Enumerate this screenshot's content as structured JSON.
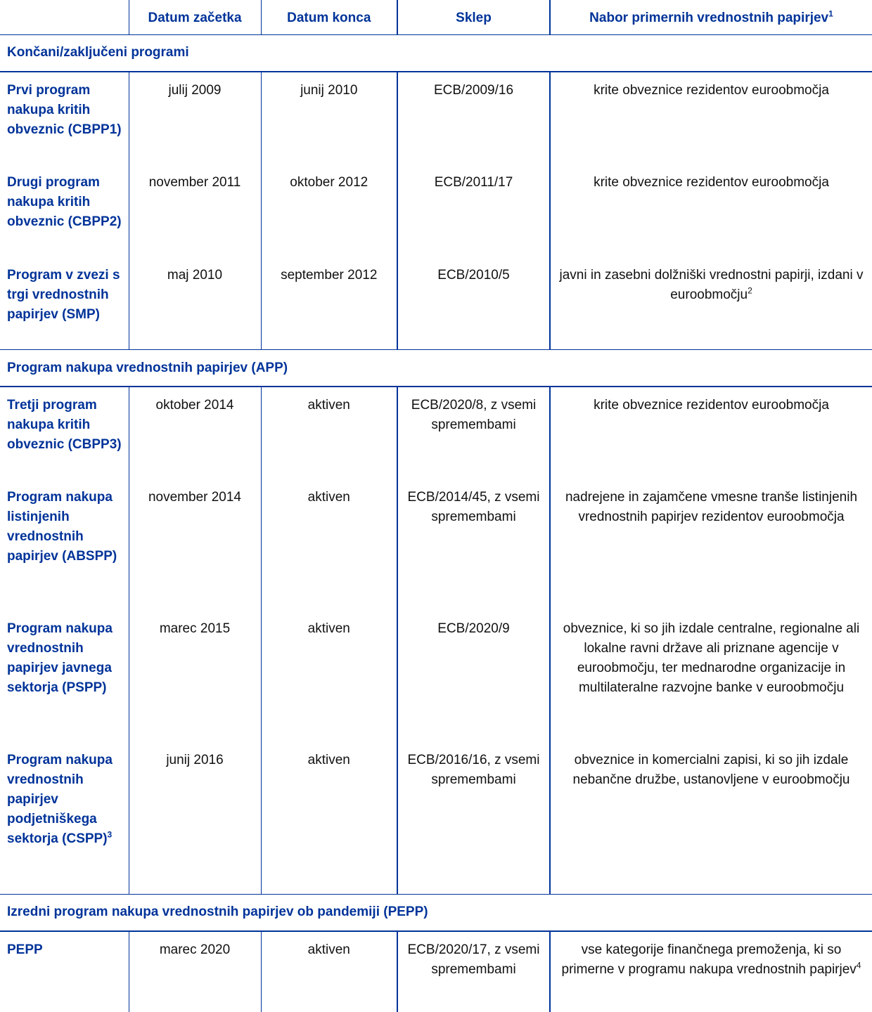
{
  "header": {
    "columns": [
      "",
      "Datum začetka",
      "Datum konca",
      "Sklep",
      "Nabor primernih vrednostnih papirjev"
    ],
    "last_col_footnote": "1"
  },
  "sections": [
    {
      "title": "Končani/zaključeni programi",
      "rows": [
        {
          "program": "Prvi program nakupa kritih obveznic (CBPP1)",
          "start": "julij 2009",
          "end": "junij 2010",
          "decision": "ECB/2009/16",
          "eligible": "krite obveznice rezidentov euroobmočja"
        },
        {
          "program": "Drugi program nakupa kritih obveznic (CBPP2)",
          "start": "november 2011",
          "end": "oktober 2012",
          "decision": "ECB/2011/17",
          "eligible": "krite obveznice rezidentov euroobmočja"
        },
        {
          "program": "Program v zvezi s trgi vrednostnih papirjev (SMP)",
          "start": "maj 2010",
          "end": "september 2012",
          "decision": "ECB/2010/5",
          "eligible": "javni in zasebni dolžniški vrednostni papirji, izdani v euroobmočju",
          "eligible_footnote": "2"
        }
      ]
    },
    {
      "title": "Program nakupa vrednostnih papirjev (APP)",
      "rows": [
        {
          "program": "Tretji program nakupa kritih obveznic (CBPP3)",
          "start": "oktober 2014",
          "end": "aktiven",
          "decision": "ECB/2020/8, z vsemi spremembami",
          "eligible": "krite obveznice rezidentov euroobmočja"
        },
        {
          "program": "Program nakupa listinjenih vrednostnih papirjev (ABSPP)",
          "start": "november 2014",
          "end": "aktiven",
          "decision": "ECB/2014/45, z vsemi spremembami",
          "eligible": "nadrejene in zajamčene vmesne tranše listinjenih vrednostnih papirjev rezidentov euroobmočja"
        },
        {
          "program": "Program nakupa vrednostnih papirjev javnega sektorja (PSPP)",
          "start": "marec 2015",
          "end": "aktiven",
          "decision": "ECB/2020/9",
          "eligible": "obveznice, ki so jih izdale centralne, regionalne ali lokalne ravni države ali priznane agencije v euroobmočju, ter mednarodne organizacije in multilateralne razvojne banke v euroobmočju"
        },
        {
          "program": "Program nakupa vrednostnih papirjev podjetniškega sektorja (CSPP)",
          "program_footnote": "3",
          "start": "junij 2016",
          "end": "aktiven",
          "decision": "ECB/2016/16, z vsemi spremembami",
          "eligible": "obveznice in komercialni zapisi, ki so jih izdale nebančne družbe, ustanovljene v euroobmočju"
        }
      ]
    },
    {
      "title": "Izredni program nakupa vrednostnih papirjev ob pandemiji (PEPP)",
      "rows": [
        {
          "program": "PEPP",
          "start": "marec 2020",
          "end": "aktiven",
          "decision": "ECB/2020/17, z vsemi spremembami",
          "eligible": "vse kategorije finančnega premoženja, ki so primerne v programu nakupa vrednostnih papirjev",
          "eligible_footnote": "4"
        }
      ]
    }
  ],
  "colors": {
    "accent": "#003399",
    "text": "#111111"
  }
}
